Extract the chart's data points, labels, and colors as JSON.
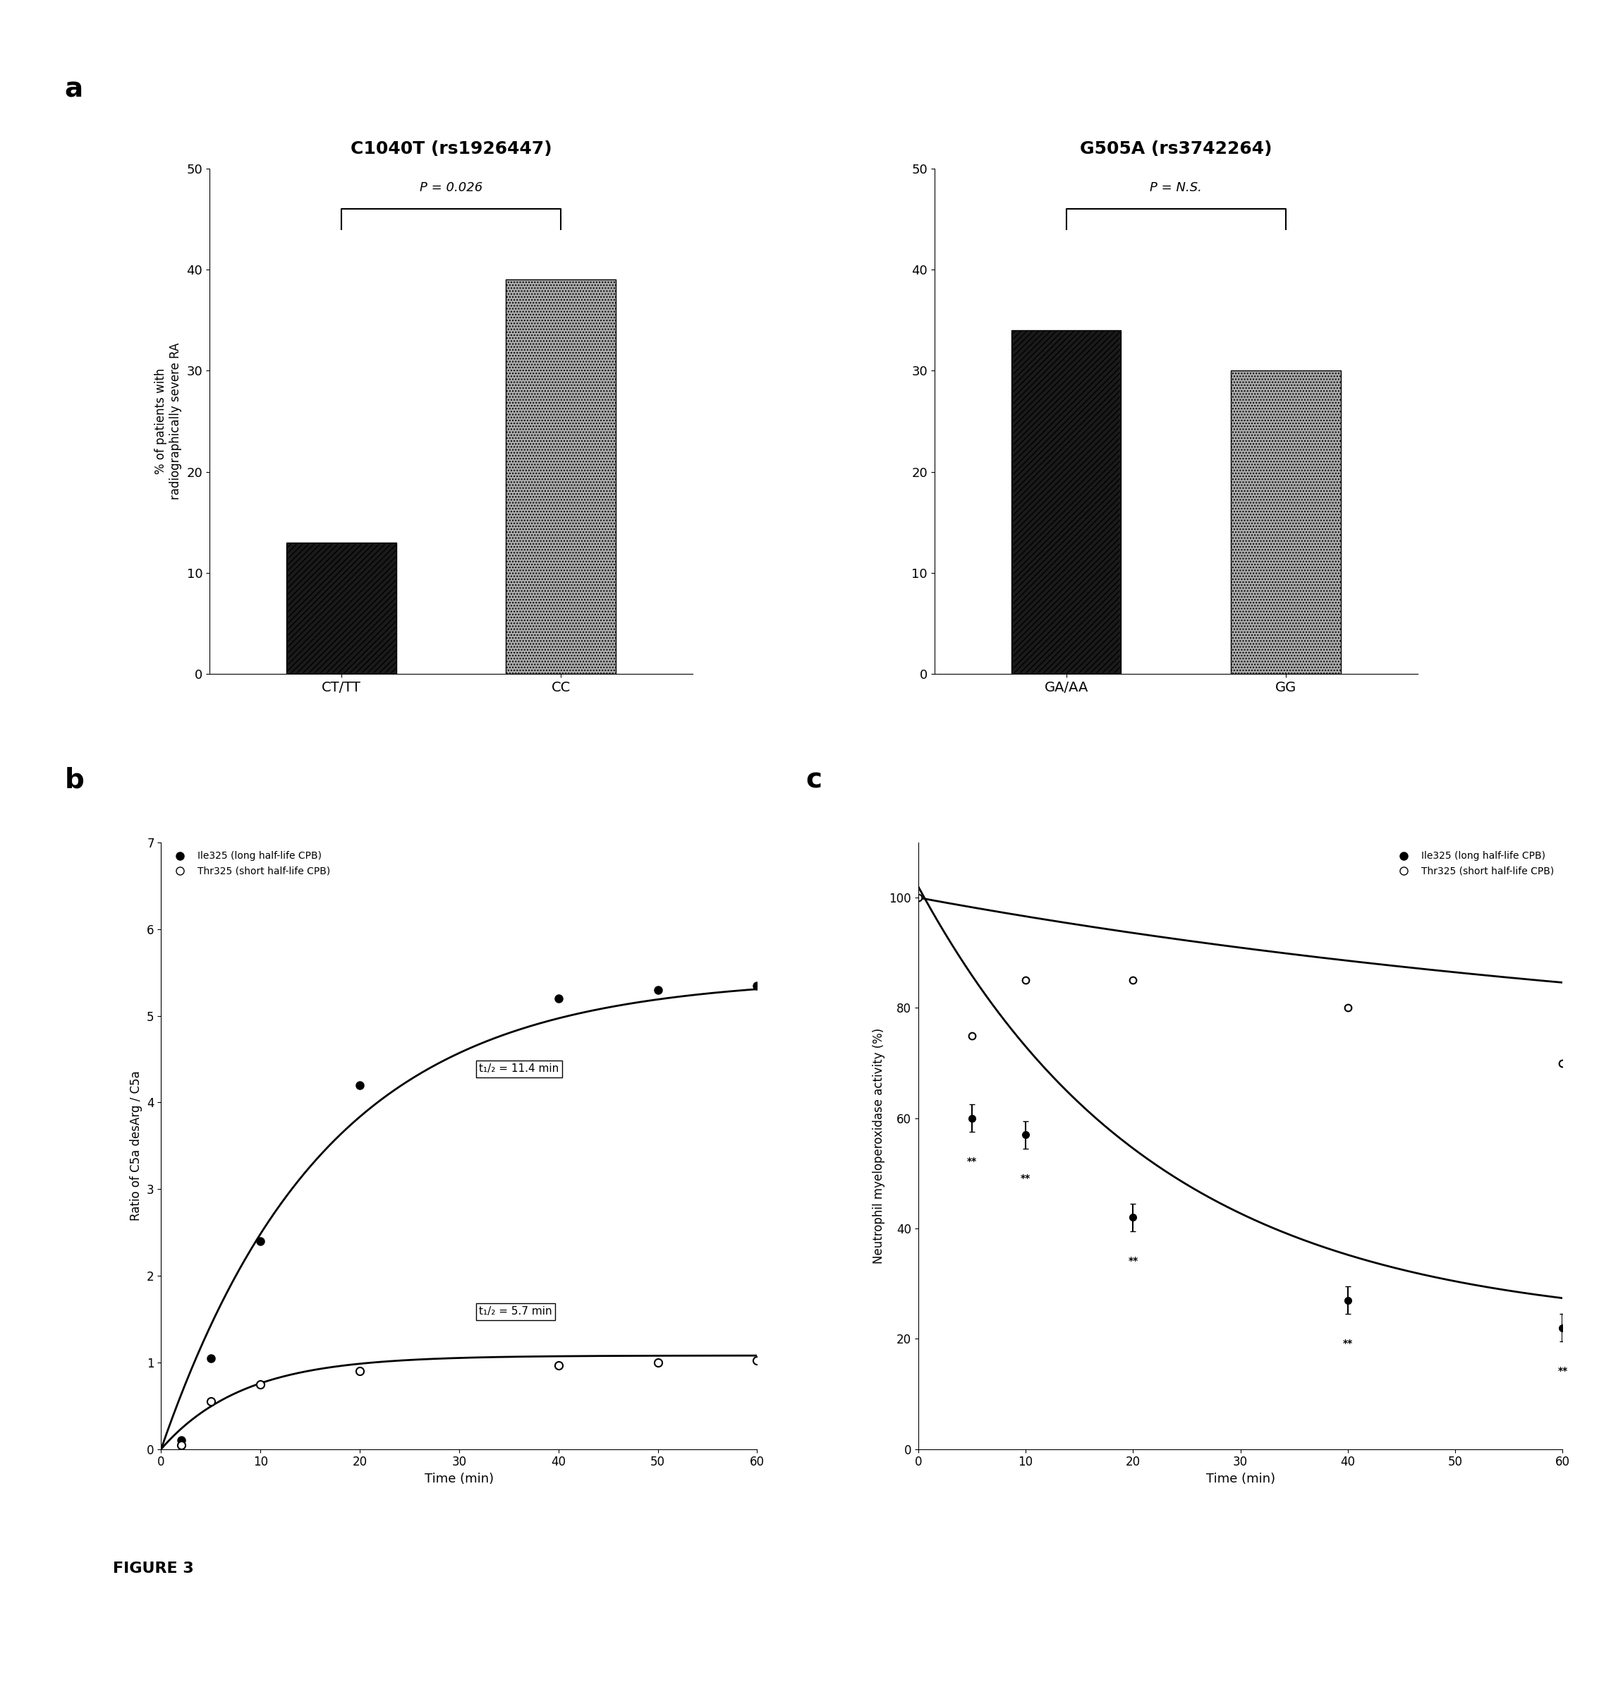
{
  "panel_a_left": {
    "title": "C1040T (rs1926447)",
    "categories": [
      "CT/TT",
      "CC"
    ],
    "values": [
      13,
      39
    ],
    "bar_colors": [
      "#111111",
      "#aaaaaa"
    ],
    "ylabel": "% of patients with\nradiographically severe RA",
    "ylim": [
      0,
      50
    ],
    "yticks": [
      0,
      10,
      20,
      30,
      40,
      50
    ],
    "p_text": "P = 0.026",
    "bracket_y": 46
  },
  "panel_a_right": {
    "title": "G505A (rs3742264)",
    "categories": [
      "GA/AA",
      "GG"
    ],
    "values": [
      34,
      30
    ],
    "bar_colors": [
      "#111111",
      "#aaaaaa"
    ],
    "ylabel": "",
    "ylim": [
      0,
      50
    ],
    "yticks": [
      0,
      10,
      20,
      30,
      40,
      50
    ],
    "p_text": "P = N.S.",
    "bracket_y": 46
  },
  "panel_b": {
    "xlabel": "Time (min)",
    "ylabel": "Ratio of C5a desArg / C5a",
    "ylim": [
      0,
      7
    ],
    "yticks": [
      0,
      1,
      2,
      3,
      4,
      5,
      6,
      7
    ],
    "xlim": [
      0,
      60
    ],
    "xticks": [
      0,
      10,
      20,
      30,
      40,
      50,
      60
    ],
    "ile325_x": [
      2,
      5,
      10,
      20,
      40,
      50,
      60
    ],
    "ile325_y": [
      0.1,
      1.05,
      2.4,
      4.2,
      5.2,
      5.3,
      5.35
    ],
    "thr325_x": [
      2,
      5,
      10,
      20,
      40,
      50,
      60
    ],
    "thr325_y": [
      0.05,
      0.55,
      0.75,
      0.9,
      0.97,
      1.0,
      1.02
    ],
    "ile_A": 5.45,
    "ile_k": 0.0608,
    "thr_A": 1.08,
    "thr_k": 0.1216,
    "t_half_ile": "t₁/₂ = 11.4 min",
    "t_half_thr": "t₁/₂ = 5.7 min",
    "legend_ile": "Ile325 (long half-life CPB)",
    "legend_thr": "Thr325 (short half-life CPB)"
  },
  "panel_c": {
    "xlabel": "Time (min)",
    "ylabel": "Neutrophil myeloperoxidase activity (%)",
    "ylim": [
      0,
      110
    ],
    "yticks": [
      0,
      20,
      40,
      60,
      80,
      100
    ],
    "xlim": [
      0,
      60
    ],
    "xticks": [
      0,
      10,
      20,
      30,
      40,
      50,
      60
    ],
    "ile325_x": [
      5,
      10,
      20,
      40,
      60
    ],
    "ile325_y": [
      60,
      57,
      42,
      27,
      22
    ],
    "ile325_err": [
      2.5,
      2.5,
      2.5,
      2.5,
      2.5
    ],
    "thr325_x": [
      0,
      5,
      10,
      20,
      40,
      60
    ],
    "thr325_y": [
      100,
      75,
      85,
      85,
      80,
      70
    ],
    "ile_A": 80,
    "ile_k": 0.045,
    "ile_C": 22,
    "thr_A": 30,
    "thr_k": 0.012,
    "thr_C": 70,
    "legend_ile": "Ile325 (long half-life CPB)",
    "legend_thr": "Thr325 (short half-life CPB)",
    "sig_x": [
      5,
      10,
      20,
      40,
      60
    ],
    "sig_text": "**"
  },
  "figure_label": "FIGURE 3",
  "panel_labels": [
    "a",
    "b",
    "c"
  ]
}
